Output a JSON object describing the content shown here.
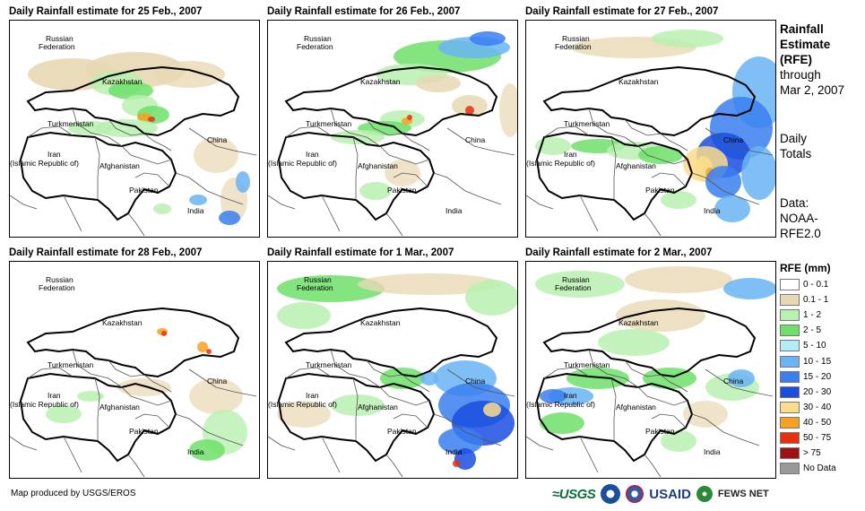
{
  "panels": [
    {
      "title": "Daily Rainfall estimate for 25 Feb., 2007",
      "scenario": "wet-north"
    },
    {
      "title": "Daily Rainfall estimate for 26 Feb., 2007",
      "scenario": "wet-northeast"
    },
    {
      "title": "Daily Rainfall estimate for 27 Feb., 2007",
      "scenario": "wet-china"
    },
    {
      "title": "Daily Rainfall estimate for 28 Feb., 2007",
      "scenario": "dry"
    },
    {
      "title": "Daily Rainfall estimate for 1 Mar., 2007",
      "scenario": "wet-southeast"
    },
    {
      "title": "Daily Rainfall estimate for 2 Mar., 2007",
      "scenario": "wet-mixed"
    }
  ],
  "countries": {
    "russia_line1": "Russian",
    "russia_line2": "Federation",
    "kazakhstan": "Kazakhstan",
    "turkmenistan": "Turkmenistan",
    "iran_line1": "Iran",
    "iran_line2": "(Islamic Republic of)",
    "afghanistan": "Afghanistan",
    "pakistan": "Pakistan",
    "china": "China",
    "india": "India"
  },
  "side": {
    "title_line1": "Rainfall",
    "title_line2": "Estimate",
    "title_line3": "(RFE)",
    "through": "through",
    "date": "Mar 2, 2007",
    "daily": "Daily",
    "totals": "Totals",
    "data_label": "Data:",
    "source_line1": "NOAA-",
    "source_line2": "RFE2.0"
  },
  "legend": {
    "title": "RFE (mm)",
    "items": [
      {
        "label": "0 - 0.1",
        "color": "#ffffff"
      },
      {
        "label": "0.1 - 1",
        "color": "#e8d8b4"
      },
      {
        "label": "1 - 2",
        "color": "#b8f0b0"
      },
      {
        "label": "2 - 5",
        "color": "#6ee06a"
      },
      {
        "label": "5 - 10",
        "color": "#b4ecf8"
      },
      {
        "label": "10 - 15",
        "color": "#6ab4f4"
      },
      {
        "label": "15 - 20",
        "color": "#3a7ef0"
      },
      {
        "label": "20 - 30",
        "color": "#1a4ee0"
      },
      {
        "label": "30 - 40",
        "color": "#fadc8a"
      },
      {
        "label": "40 - 50",
        "color": "#f8a020"
      },
      {
        "label": "50 - 75",
        "color": "#e83010"
      },
      {
        "label": "> 75",
        "color": "#a01010"
      },
      {
        "label": "No Data",
        "color": "#999999"
      }
    ]
  },
  "footer": {
    "credit": "Map produced by USGS/EROS",
    "logo_usgs": "≈USGS",
    "logo_usaid": "USAID",
    "logo_fews": "FEWS NET"
  }
}
